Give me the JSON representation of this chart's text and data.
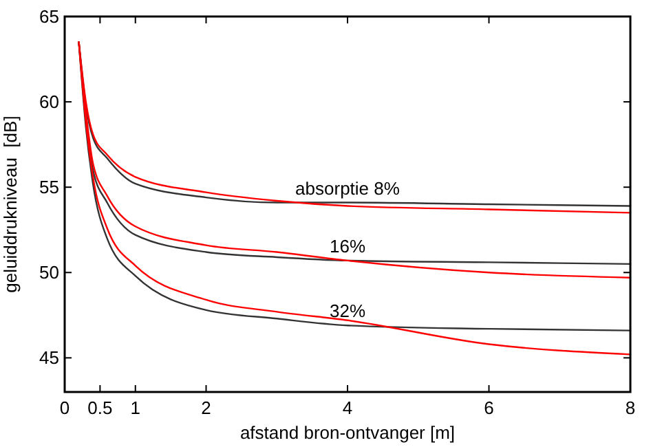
{
  "chart_data": {
    "type": "line",
    "xlabel": "afstand bron-ontvanger [m]",
    "ylabel": "geluiddrukniveau  [dB]",
    "xlim": [
      0,
      8
    ],
    "xticks": [
      0,
      0.5,
      1,
      2,
      4,
      6,
      8
    ],
    "ylim": [
      43,
      65
    ],
    "yticks": [
      45,
      50,
      55,
      60,
      65
    ],
    "marker": "none",
    "line_style": "solid",
    "series": [
      {
        "name": "absorptie 8%",
        "color": "#333333",
        "x": [
          0.2,
          0.3,
          0.4,
          0.6,
          1,
          2,
          3,
          4,
          6,
          8
        ],
        "values": [
          63.5,
          59.8,
          57.9,
          56.7,
          55.2,
          54.4,
          54.1,
          54.1,
          54,
          53.9
        ]
      },
      {
        "color": "#ff0000",
        "x": [
          0.2,
          0.3,
          0.4,
          0.6,
          1,
          2,
          3,
          4,
          6,
          8
        ],
        "values": [
          63.5,
          60,
          58.1,
          56.9,
          55.6,
          54.7,
          54.2,
          53.9,
          53.7,
          53.5
        ]
      },
      {
        "name": "16%",
        "color": "#333333",
        "x": [
          0.2,
          0.3,
          0.4,
          0.6,
          1,
          2,
          3,
          4,
          6,
          8
        ],
        "values": [
          63.5,
          59.2,
          56,
          54.1,
          52.2,
          51.2,
          50.9,
          50.7,
          50.6,
          50.5
        ]
      },
      {
        "color": "#ff0000",
        "x": [
          0.2,
          0.3,
          0.4,
          0.6,
          1,
          2,
          3,
          4,
          6,
          8
        ],
        "values": [
          63.5,
          59.4,
          56.4,
          54.5,
          52.7,
          51.6,
          51.2,
          50.7,
          50,
          49.7
        ]
      },
      {
        "name": "32%",
        "color": "#333333",
        "x": [
          0.2,
          0.3,
          0.4,
          0.6,
          1,
          2,
          3,
          4,
          6,
          8
        ],
        "values": [
          63.5,
          58.5,
          55.2,
          52,
          49.8,
          47.8,
          47.3,
          46.9,
          46.7,
          46.6
        ]
      },
      {
        "color": "#ff0000",
        "x": [
          0.2,
          0.3,
          0.4,
          0.6,
          1,
          2,
          3,
          4,
          6,
          8
        ],
        "values": [
          63.5,
          58.8,
          55.6,
          52.6,
          50.4,
          48.4,
          47.7,
          47.2,
          45.8,
          45.2
        ]
      }
    ]
  }
}
